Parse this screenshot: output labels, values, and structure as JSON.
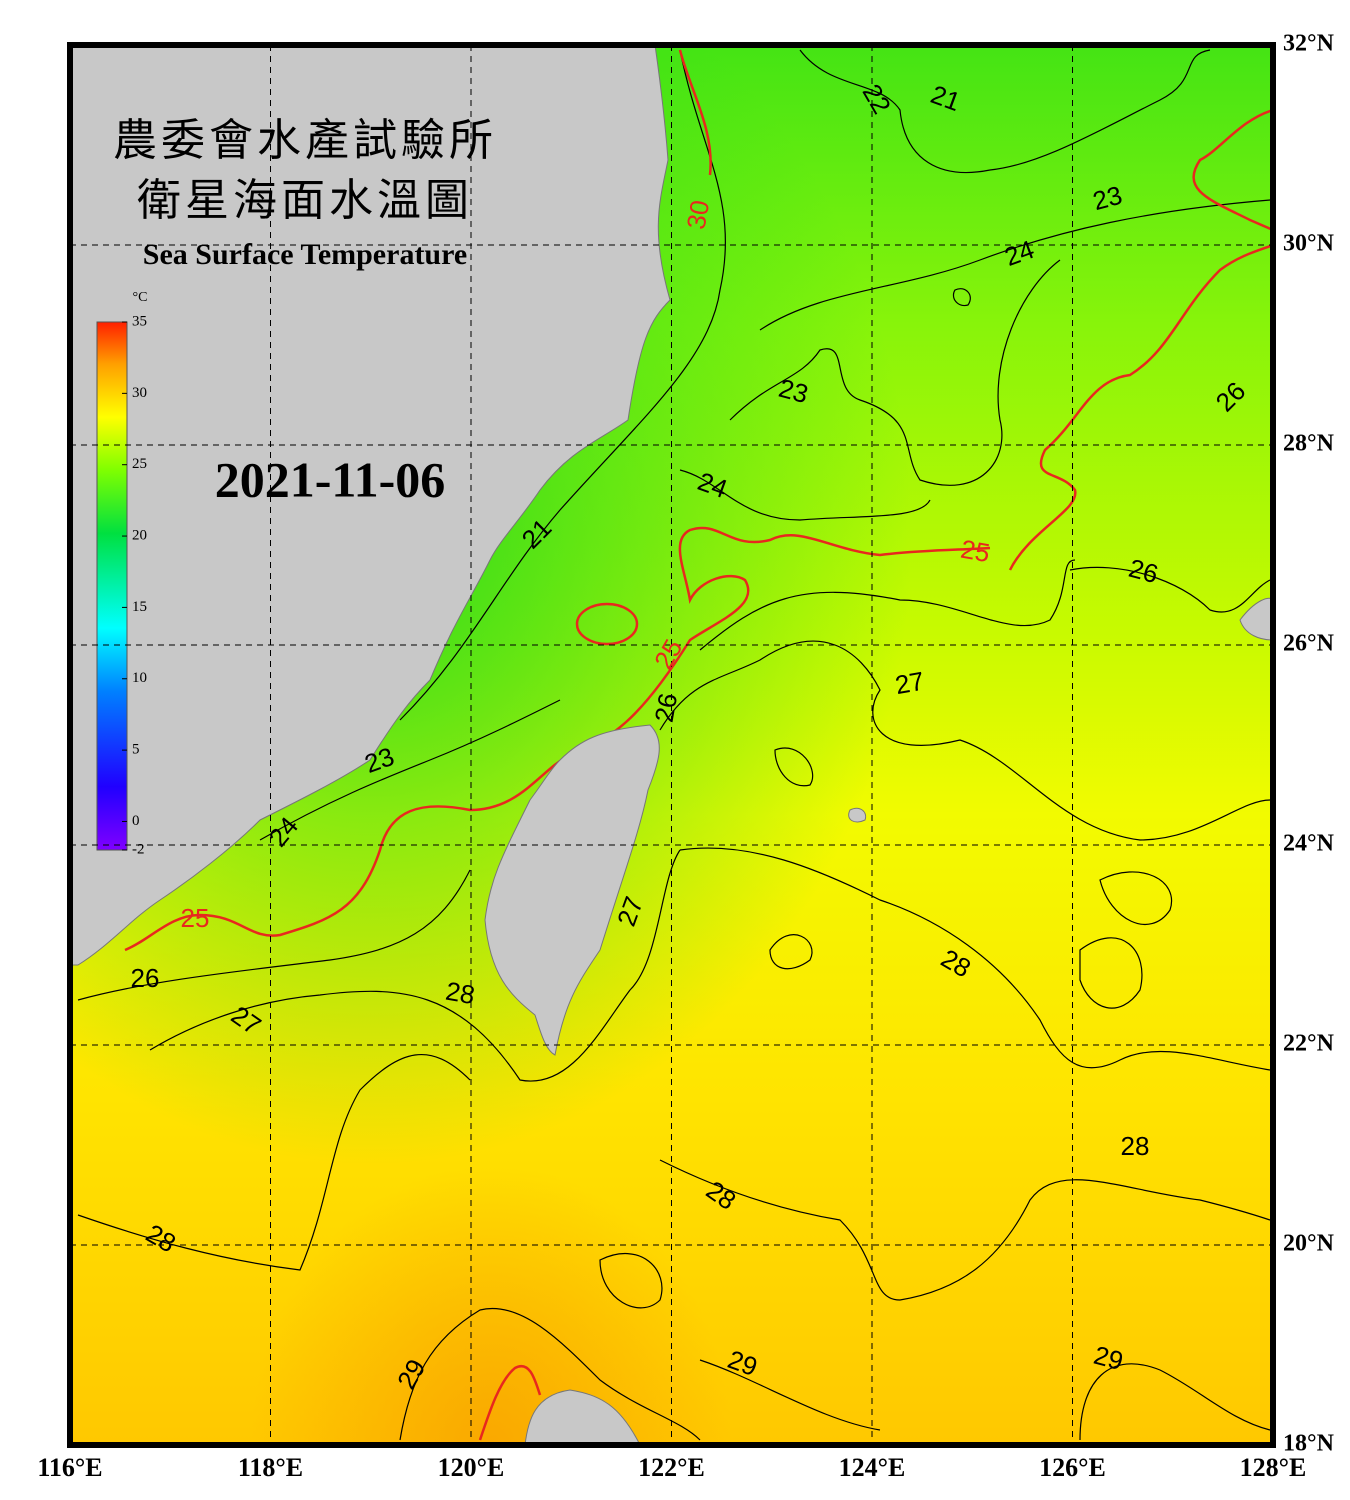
{
  "header": {
    "title_line1": "農委會水產試驗所",
    "title_line2": "衛星海面水溫圖",
    "subtitle": "Sea Surface Temperature",
    "date": "2021-11-06"
  },
  "colorbar": {
    "unit": "°C",
    "range": [
      -2,
      35
    ],
    "ticks": [
      35,
      30,
      25,
      20,
      15,
      10,
      5,
      0,
      -2
    ]
  },
  "map": {
    "lon_range": [
      116,
      128
    ],
    "lat_range": [
      18,
      32
    ],
    "lon_ticks": [
      {
        "value": 116,
        "label": "116°E"
      },
      {
        "value": 118,
        "label": "118°E"
      },
      {
        "value": 120,
        "label": "120°E"
      },
      {
        "value": 122,
        "label": "122°E"
      },
      {
        "value": 124,
        "label": "124°E"
      },
      {
        "value": 126,
        "label": "126°E"
      },
      {
        "value": 128,
        "label": "128°E"
      }
    ],
    "lat_ticks": [
      {
        "value": 32,
        "label": "32°N"
      },
      {
        "value": 30,
        "label": "30°N"
      },
      {
        "value": 28,
        "label": "28°N"
      },
      {
        "value": 26,
        "label": "26°N"
      },
      {
        "value": 24,
        "label": "24°N"
      },
      {
        "value": 22,
        "label": "22°N"
      },
      {
        "value": 20,
        "label": "20°N"
      },
      {
        "value": 18,
        "label": "18°N"
      }
    ],
    "grid": true
  },
  "contours": {
    "highlight_isotherms": [
      25,
      30
    ],
    "highlight_color": "#e8281e",
    "labels": [
      22,
      21,
      23,
      24,
      23,
      26,
      24,
      25,
      26,
      21,
      25,
      26,
      27,
      23,
      24,
      25,
      27,
      28,
      26,
      27,
      28,
      28,
      28,
      28,
      29,
      29,
      29,
      30
    ]
  }
}
